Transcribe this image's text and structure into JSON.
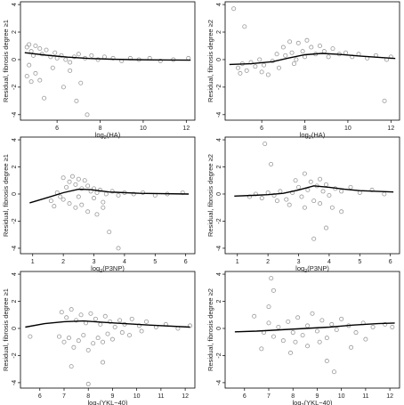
{
  "chart_data": [
    {
      "type": "scatter",
      "xlabel_base": "log",
      "xlabel_sub": "2",
      "xlabel_arg": "(HA)",
      "ylabel": "Residual, fibrosis degree ≥1",
      "xlim": [
        4.3,
        12.4
      ],
      "ylim": [
        -4.4,
        4.2
      ],
      "xticks": [
        6,
        8,
        10,
        12
      ],
      "yticks": [
        -4,
        -2,
        0,
        2,
        4
      ],
      "smooth": [
        [
          4.5,
          0.5
        ],
        [
          5.5,
          0.32
        ],
        [
          6.5,
          0.18
        ],
        [
          7.5,
          0.08
        ],
        [
          8.5,
          0.03
        ],
        [
          9.5,
          0.0
        ],
        [
          10.5,
          -0.02
        ],
        [
          12.2,
          -0.04
        ]
      ],
      "points": [
        [
          4.6,
          0.9
        ],
        [
          4.7,
          1.1
        ],
        [
          4.8,
          0.6
        ],
        [
          4.9,
          0.3
        ],
        [
          5.0,
          1.0
        ],
        [
          5.2,
          0.8
        ],
        [
          5.3,
          0.4
        ],
        [
          5.5,
          0.7
        ],
        [
          5.7,
          0.2
        ],
        [
          5.9,
          0.5
        ],
        [
          6.0,
          0.1
        ],
        [
          6.2,
          0.3
        ],
        [
          6.4,
          0.0
        ],
        [
          6.6,
          -0.2
        ],
        [
          6.8,
          0.2
        ],
        [
          7.0,
          0.4
        ],
        [
          7.3,
          0.1
        ],
        [
          7.6,
          0.3
        ],
        [
          7.9,
          0.0
        ],
        [
          8.2,
          0.2
        ],
        [
          8.6,
          0.1
        ],
        [
          9.0,
          -0.1
        ],
        [
          9.4,
          0.1
        ],
        [
          9.8,
          0.0
        ],
        [
          10.3,
          0.1
        ],
        [
          10.8,
          -0.1
        ],
        [
          11.4,
          0.0
        ],
        [
          12.1,
          0.1
        ],
        [
          4.6,
          -1.2
        ],
        [
          4.8,
          -1.6
        ],
        [
          5.0,
          -1.0
        ],
        [
          5.2,
          -1.5
        ],
        [
          5.4,
          -2.8
        ],
        [
          6.3,
          -2.0
        ],
        [
          6.6,
          -0.8
        ],
        [
          6.9,
          -3.0
        ],
        [
          7.1,
          -1.7
        ],
        [
          7.4,
          -4.0
        ],
        [
          5.8,
          -0.6
        ],
        [
          4.7,
          -0.4
        ]
      ]
    },
    {
      "type": "scatter",
      "xlabel_base": "log",
      "xlabel_sub": "2",
      "xlabel_arg": "(HA)",
      "ylabel": "Residual, fibrosis degree ≥2",
      "xlim": [
        4.3,
        12.4
      ],
      "ylim": [
        -4.4,
        4.2
      ],
      "xticks": [
        6,
        8,
        10,
        12
      ],
      "yticks": [
        -4,
        -2,
        0,
        2,
        4
      ],
      "smooth": [
        [
          4.5,
          -0.35
        ],
        [
          5.5,
          -0.3
        ],
        [
          6.5,
          -0.15
        ],
        [
          7.2,
          0.1
        ],
        [
          8.0,
          0.35
        ],
        [
          8.8,
          0.45
        ],
        [
          9.6,
          0.38
        ],
        [
          10.6,
          0.25
        ],
        [
          12.2,
          0.08
        ]
      ],
      "points": [
        [
          4.7,
          3.7
        ],
        [
          5.2,
          2.4
        ],
        [
          4.9,
          -0.6
        ],
        [
          5.1,
          -0.3
        ],
        [
          5.3,
          -0.8
        ],
        [
          5.5,
          -0.2
        ],
        [
          5.7,
          -0.5
        ],
        [
          5.9,
          0.0
        ],
        [
          6.1,
          -0.4
        ],
        [
          6.3,
          -1.1
        ],
        [
          6.5,
          -0.1
        ],
        [
          6.7,
          0.4
        ],
        [
          6.8,
          -0.6
        ],
        [
          7.0,
          0.9
        ],
        [
          7.1,
          0.3
        ],
        [
          7.3,
          1.3
        ],
        [
          7.4,
          0.5
        ],
        [
          7.6,
          0.0
        ],
        [
          7.7,
          1.2
        ],
        [
          7.9,
          0.6
        ],
        [
          8.0,
          0.2
        ],
        [
          8.1,
          1.4
        ],
        [
          8.3,
          0.9
        ],
        [
          8.5,
          0.4
        ],
        [
          8.7,
          1.0
        ],
        [
          8.9,
          0.6
        ],
        [
          9.1,
          0.2
        ],
        [
          9.3,
          0.8
        ],
        [
          9.6,
          0.4
        ],
        [
          9.9,
          0.5
        ],
        [
          10.2,
          0.2
        ],
        [
          10.5,
          0.4
        ],
        [
          10.9,
          0.1
        ],
        [
          11.3,
          0.3
        ],
        [
          11.8,
          0.0
        ],
        [
          12.0,
          0.2
        ],
        [
          11.7,
          -3.0
        ],
        [
          6.0,
          -0.9
        ],
        [
          7.5,
          -0.3
        ],
        [
          5.0,
          -1.0
        ]
      ]
    },
    {
      "type": "scatter",
      "xlabel_base": "log",
      "xlabel_sub": "2",
      "xlabel_arg": "(P3NP)",
      "ylabel": "Residual, fibrosis degree ≥1",
      "xlim": [
        0.6,
        6.3
      ],
      "ylim": [
        -4.4,
        4.2
      ],
      "xticks": [
        1,
        2,
        3,
        4,
        5,
        6
      ],
      "yticks": [
        -4,
        -2,
        0,
        2,
        4
      ],
      "smooth": [
        [
          0.9,
          -0.65
        ],
        [
          1.5,
          -0.25
        ],
        [
          2.0,
          0.1
        ],
        [
          2.5,
          0.35
        ],
        [
          2.9,
          0.32
        ],
        [
          3.5,
          0.15
        ],
        [
          4.5,
          0.05
        ],
        [
          6.1,
          0.0
        ]
      ],
      "points": [
        [
          1.6,
          -0.5
        ],
        [
          1.8,
          0.1
        ],
        [
          1.9,
          -0.2
        ],
        [
          2.0,
          1.2
        ],
        [
          2.1,
          0.5
        ],
        [
          2.2,
          0.9
        ],
        [
          2.3,
          1.3
        ],
        [
          2.4,
          0.7
        ],
        [
          2.5,
          1.1
        ],
        [
          2.6,
          0.4
        ],
        [
          2.7,
          1.0
        ],
        [
          2.8,
          0.6
        ],
        [
          2.9,
          0.2
        ],
        [
          3.0,
          0.4
        ],
        [
          3.1,
          0.1
        ],
        [
          3.2,
          0.3
        ],
        [
          3.4,
          0.0
        ],
        [
          3.6,
          0.2
        ],
        [
          3.8,
          -0.1
        ],
        [
          4.0,
          0.1
        ],
        [
          4.3,
          0.0
        ],
        [
          4.6,
          0.1
        ],
        [
          5.0,
          -0.1
        ],
        [
          5.4,
          0.0
        ],
        [
          5.9,
          0.1
        ],
        [
          2.2,
          -0.7
        ],
        [
          2.4,
          -1.0
        ],
        [
          2.6,
          -0.8
        ],
        [
          2.8,
          -1.3
        ],
        [
          3.1,
          -1.5
        ],
        [
          3.3,
          -1.0
        ],
        [
          3.5,
          -2.8
        ],
        [
          3.8,
          -4.0
        ],
        [
          3.3,
          -0.6
        ],
        [
          2.0,
          -0.4
        ],
        [
          1.7,
          -0.9
        ],
        [
          3.0,
          -0.3
        ],
        [
          2.5,
          -0.2
        ]
      ]
    },
    {
      "type": "scatter",
      "xlabel_base": "log",
      "xlabel_sub": "2",
      "xlabel_arg": "(P3NP)",
      "ylabel": "Residual, fibrosis degree ≥2",
      "xlim": [
        0.6,
        6.3
      ],
      "ylim": [
        -4.4,
        4.2
      ],
      "xticks": [
        1,
        2,
        3,
        4,
        5,
        6
      ],
      "yticks": [
        -4,
        -2,
        0,
        2,
        4
      ],
      "smooth": [
        [
          0.9,
          -0.15
        ],
        [
          1.5,
          -0.1
        ],
        [
          2.0,
          -0.05
        ],
        [
          2.5,
          0.05
        ],
        [
          3.0,
          0.3
        ],
        [
          3.5,
          0.6
        ],
        [
          4.0,
          0.5
        ],
        [
          4.5,
          0.35
        ],
        [
          5.0,
          0.25
        ],
        [
          6.1,
          0.15
        ]
      ],
      "points": [
        [
          1.9,
          3.7
        ],
        [
          2.1,
          2.2
        ],
        [
          1.4,
          -0.2
        ],
        [
          1.6,
          0.0
        ],
        [
          1.8,
          -0.3
        ],
        [
          2.0,
          0.1
        ],
        [
          2.2,
          -0.1
        ],
        [
          2.4,
          0.2
        ],
        [
          2.6,
          -0.4
        ],
        [
          2.8,
          0.1
        ],
        [
          2.9,
          1.0
        ],
        [
          3.0,
          0.5
        ],
        [
          3.1,
          -0.2
        ],
        [
          3.2,
          1.5
        ],
        [
          3.3,
          0.3
        ],
        [
          3.4,
          0.9
        ],
        [
          3.5,
          -0.5
        ],
        [
          3.6,
          0.6
        ],
        [
          3.7,
          1.1
        ],
        [
          3.8,
          0.2
        ],
        [
          3.9,
          0.7
        ],
        [
          4.0,
          -0.1
        ],
        [
          4.2,
          0.4
        ],
        [
          4.4,
          0.2
        ],
        [
          4.7,
          0.5
        ],
        [
          5.0,
          0.1
        ],
        [
          5.4,
          0.3
        ],
        [
          5.8,
          0.0
        ],
        [
          3.5,
          -3.3
        ],
        [
          3.9,
          -2.5
        ],
        [
          4.4,
          -1.3
        ],
        [
          3.2,
          -1.0
        ],
        [
          2.7,
          -0.8
        ],
        [
          3.7,
          -0.7
        ],
        [
          4.1,
          -1.0
        ],
        [
          2.3,
          -0.5
        ]
      ]
    },
    {
      "type": "scatter",
      "xlabel_base": "log",
      "xlabel_sub": "2",
      "xlabel_arg": "(YKL−40)",
      "ylabel": "Residual, fibrosis degree ≥1",
      "xlim": [
        5.2,
        12.4
      ],
      "ylim": [
        -4.4,
        4.2
      ],
      "xticks": [
        6,
        7,
        8,
        9,
        10,
        11,
        12
      ],
      "yticks": [
        -4,
        -2,
        0,
        2,
        4
      ],
      "smooth": [
        [
          5.4,
          0.1
        ],
        [
          6.2,
          0.35
        ],
        [
          7.0,
          0.5
        ],
        [
          7.8,
          0.55
        ],
        [
          8.6,
          0.45
        ],
        [
          9.5,
          0.35
        ],
        [
          10.5,
          0.25
        ],
        [
          12.2,
          0.1
        ]
      ],
      "points": [
        [
          6.9,
          1.2
        ],
        [
          7.1,
          0.8
        ],
        [
          7.3,
          1.4
        ],
        [
          7.5,
          0.6
        ],
        [
          7.7,
          1.0
        ],
        [
          7.9,
          0.4
        ],
        [
          8.1,
          1.1
        ],
        [
          8.3,
          0.7
        ],
        [
          8.5,
          0.3
        ],
        [
          8.7,
          0.9
        ],
        [
          8.9,
          0.5
        ],
        [
          9.1,
          0.1
        ],
        [
          9.3,
          0.6
        ],
        [
          9.5,
          0.3
        ],
        [
          9.8,
          0.7
        ],
        [
          10.1,
          0.2
        ],
        [
          10.4,
          0.5
        ],
        [
          10.8,
          0.1
        ],
        [
          11.2,
          0.3
        ],
        [
          11.7,
          0.0
        ],
        [
          12.2,
          0.2
        ],
        [
          6.8,
          -0.6
        ],
        [
          7.0,
          -1.0
        ],
        [
          7.2,
          -0.7
        ],
        [
          7.4,
          -1.4
        ],
        [
          7.6,
          -0.9
        ],
        [
          7.8,
          -0.5
        ],
        [
          8.0,
          -1.6
        ],
        [
          8.2,
          -1.1
        ],
        [
          8.4,
          -0.7
        ],
        [
          8.6,
          -1.0
        ],
        [
          8.8,
          -0.4
        ],
        [
          9.0,
          -0.8
        ],
        [
          9.4,
          -0.3
        ],
        [
          7.3,
          -2.8
        ],
        [
          8.0,
          -4.1
        ],
        [
          8.6,
          -2.5
        ],
        [
          5.6,
          -0.6
        ],
        [
          9.7,
          -0.5
        ],
        [
          10.2,
          -0.2
        ]
      ]
    },
    {
      "type": "scatter",
      "xlabel_base": "log",
      "xlabel_sub": "2",
      "xlabel_arg": "(YKL−40)",
      "ylabel": "Residual, fibrosis degree ≥2",
      "xlim": [
        5.2,
        12.4
      ],
      "ylim": [
        -4.4,
        4.2
      ],
      "xticks": [
        6,
        7,
        8,
        9,
        10,
        11,
        12
      ],
      "yticks": [
        -4,
        -2,
        0,
        2,
        4
      ],
      "smooth": [
        [
          5.6,
          -0.25
        ],
        [
          6.5,
          -0.2
        ],
        [
          7.5,
          -0.1
        ],
        [
          8.5,
          0.0
        ],
        [
          9.5,
          0.1
        ],
        [
          10.5,
          0.25
        ],
        [
          11.5,
          0.35
        ],
        [
          12.2,
          0.4
        ]
      ],
      "points": [
        [
          7.1,
          3.7
        ],
        [
          7.2,
          2.8
        ],
        [
          7.0,
          1.6
        ],
        [
          6.4,
          0.9
        ],
        [
          6.8,
          -0.3
        ],
        [
          7.0,
          0.4
        ],
        [
          7.2,
          -0.6
        ],
        [
          7.4,
          0.1
        ],
        [
          7.6,
          -0.9
        ],
        [
          7.8,
          0.5
        ],
        [
          8.0,
          -0.3
        ],
        [
          8.2,
          0.8
        ],
        [
          8.4,
          -0.5
        ],
        [
          8.6,
          0.2
        ],
        [
          8.8,
          1.1
        ],
        [
          9.0,
          -0.2
        ],
        [
          9.2,
          0.6
        ],
        [
          9.4,
          -0.7
        ],
        [
          9.6,
          0.3
        ],
        [
          9.8,
          -0.1
        ],
        [
          10.0,
          0.7
        ],
        [
          10.3,
          0.2
        ],
        [
          10.6,
          -0.3
        ],
        [
          10.9,
          0.4
        ],
        [
          11.3,
          0.1
        ],
        [
          11.8,
          0.3
        ],
        [
          12.1,
          0.1
        ],
        [
          7.9,
          -1.8
        ],
        [
          8.6,
          -1.3
        ],
        [
          9.4,
          -2.4
        ],
        [
          9.7,
          -3.2
        ],
        [
          10.4,
          -1.4
        ],
        [
          8.1,
          -1.0
        ],
        [
          9.1,
          -1.0
        ],
        [
          6.7,
          -1.5
        ],
        [
          11.0,
          -0.8
        ]
      ]
    }
  ]
}
